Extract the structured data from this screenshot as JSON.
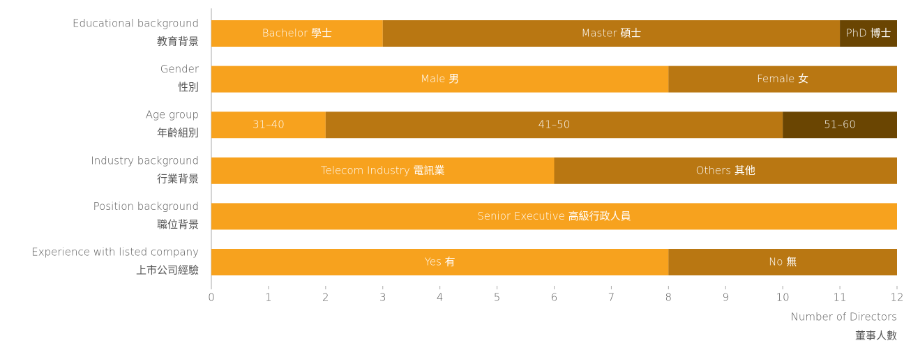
{
  "chart_data": {
    "type": "stacked_bar_h",
    "categories": [
      [
        "Educational background",
        "教育背景"
      ],
      [
        "Gender",
        "性別"
      ],
      [
        "Age group",
        "年齡組別"
      ],
      [
        "Industry background",
        "行業背景"
      ],
      [
        "Position background",
        "職位背景"
      ],
      [
        "Experience with listed company",
        "上市公司經驗"
      ]
    ],
    "colors": [
      "#f7a21e",
      "#b97712",
      "#6a4502"
    ],
    "bars": [
      {
        "segments": [
          {
            "name": "Bachelor 學士",
            "value": 3
          },
          {
            "name": "Master 碩士",
            "value": 8
          },
          {
            "name": "PhD 博士",
            "value": 1
          }
        ]
      },
      {
        "segments": [
          {
            "name": "Male 男",
            "value": 8
          },
          {
            "name": "Female 女",
            "value": 4
          }
        ]
      },
      {
        "segments": [
          {
            "name": "31–40",
            "value": 2
          },
          {
            "name": "41–50",
            "value": 8
          },
          {
            "name": "51–60",
            "value": 2
          }
        ]
      },
      {
        "segments": [
          {
            "name": "Telecom Industry 電訊業",
            "value": 6
          },
          {
            "name": "Others 其他",
            "value": 6
          }
        ]
      },
      {
        "segments": [
          {
            "name": "Senior Executive 高級行政人員",
            "value": 12
          }
        ]
      },
      {
        "segments": [
          {
            "name": "Yes 有",
            "value": 8
          },
          {
            "name": "No 無",
            "value": 4
          }
        ]
      }
    ],
    "xlabel": [
      "Number of Directors",
      "董事人數"
    ],
    "xlim": [
      0,
      12
    ],
    "xticks": [
      0,
      1,
      2,
      3,
      4,
      5,
      6,
      7,
      8,
      9,
      10,
      11,
      12
    ]
  }
}
